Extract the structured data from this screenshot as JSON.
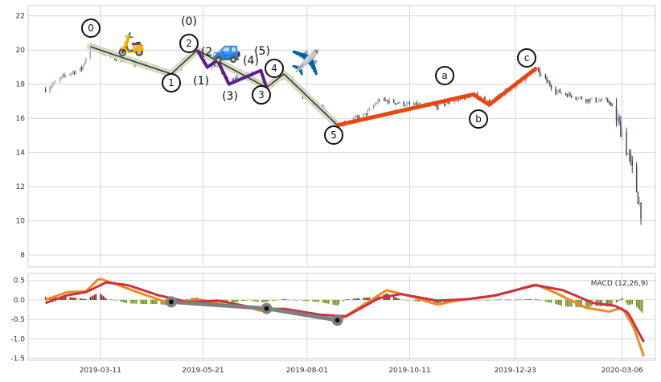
{
  "chart_data": [
    {
      "type": "candlestick",
      "panel": "price",
      "xlim": [
        "2019-01-20",
        "2020-03-29"
      ],
      "ylim": [
        7.3,
        22.6
      ],
      "yticks": [
        8,
        10,
        12,
        14,
        16,
        18,
        20,
        22
      ],
      "grid": true,
      "colors": {
        "up": "#9aa3b0",
        "down": "#3a4352",
        "impulse_outline": "#d2d9bf",
        "impulse_core": "#2a2a2a",
        "sub_wave": "#5b1f8a",
        "correction": "#e8470f"
      },
      "price_anchors": [
        {
          "x": "2019-02-01",
          "y": 17.7
        },
        {
          "x": "2019-02-16",
          "y": 18.6
        },
        {
          "x": "2019-02-26",
          "y": 18.9
        },
        {
          "x": "2019-03-04",
          "y": 20.2
        },
        {
          "x": "2019-03-22",
          "y": 19.5
        },
        {
          "x": "2019-04-10",
          "y": 19.1
        },
        {
          "x": "2019-04-29",
          "y": 18.6
        },
        {
          "x": "2019-05-10",
          "y": 19.6
        },
        {
          "x": "2019-05-17",
          "y": 20.0
        },
        {
          "x": "2019-05-24",
          "y": 19.0
        },
        {
          "x": "2019-05-31",
          "y": 19.1
        },
        {
          "x": "2019-06-08",
          "y": 18.1
        },
        {
          "x": "2019-06-21",
          "y": 18.6
        },
        {
          "x": "2019-06-30",
          "y": 17.9
        },
        {
          "x": "2019-07-04",
          "y": 17.8
        },
        {
          "x": "2019-07-16",
          "y": 18.5
        },
        {
          "x": "2019-07-30",
          "y": 17.3
        },
        {
          "x": "2019-08-13",
          "y": 16.4
        },
        {
          "x": "2019-08-22",
          "y": 15.6
        },
        {
          "x": "2019-09-10",
          "y": 16.2
        },
        {
          "x": "2019-09-20",
          "y": 17.1
        },
        {
          "x": "2019-10-10",
          "y": 16.8
        },
        {
          "x": "2019-10-30",
          "y": 16.7
        },
        {
          "x": "2019-11-24",
          "y": 17.4
        },
        {
          "x": "2019-12-05",
          "y": 16.9
        },
        {
          "x": "2019-12-20",
          "y": 17.8
        },
        {
          "x": "2020-01-06",
          "y": 18.9
        },
        {
          "x": "2020-01-20",
          "y": 17.6
        },
        {
          "x": "2020-02-10",
          "y": 17.1
        },
        {
          "x": "2020-02-26",
          "y": 17.0
        },
        {
          "x": "2020-03-06",
          "y": 15.2
        },
        {
          "x": "2020-03-14",
          "y": 12.6
        },
        {
          "x": "2020-03-19",
          "y": 10.6
        }
      ],
      "waves": [
        {
          "label": "0",
          "x": "2019-03-04",
          "y": 20.2
        },
        {
          "label": "1",
          "x": "2019-04-29",
          "y": 18.6
        },
        {
          "label": "2",
          "x": "2019-05-17",
          "y": 20.0
        },
        {
          "label": "3",
          "x": "2019-07-04",
          "y": 17.8
        },
        {
          "label": "4",
          "x": "2019-07-16",
          "y": 18.6
        },
        {
          "label": "5",
          "x": "2019-08-22",
          "y": 15.6
        }
      ],
      "sub_waves": [
        {
          "label": "(0)",
          "x": "2019-05-17",
          "y": 20.0
        },
        {
          "label": "(1)",
          "x": "2019-05-24",
          "y": 19.0
        },
        {
          "label": "(2",
          "x": "2019-05-31",
          "y": 19.4
        },
        {
          "label": "(3)",
          "x": "2019-06-08",
          "y": 18.0
        },
        {
          "label": "(4)",
          "x": "2019-06-30",
          "y": 18.8
        },
        {
          "label": "(5)",
          "x": "2019-07-04",
          "y": 17.8
        }
      ],
      "correction": [
        {
          "label": "a",
          "x": "2019-11-24",
          "y": 17.4
        },
        {
          "label": "b",
          "x": "2019-12-05",
          "y": 16.8
        },
        {
          "label": "c",
          "x": "2020-01-06",
          "y": 18.9
        }
      ],
      "correction_start": {
        "x": "2019-08-22",
        "y": 15.6
      },
      "icons": [
        {
          "name": "scooter-icon",
          "glyph": "🛵"
        },
        {
          "name": "car-icon",
          "glyph": "🚙"
        },
        {
          "name": "airplane-icon",
          "glyph": "✈️"
        }
      ],
      "wave_labels": {
        "w0": "0",
        "w1": "1",
        "w2": "2",
        "w3": "3",
        "w4": "4",
        "w5": "5",
        "s0": "(0)",
        "s1": "(1)",
        "s2": "(2",
        "s3": "(3)",
        "s4": "(4)",
        "s5": "(5)",
        "ca": "a",
        "cb": "b",
        "cc": "c"
      }
    },
    {
      "type": "macd",
      "panel": "indicator",
      "label": "MACD (12,26,9)",
      "ylim": [
        -1.55,
        0.68
      ],
      "yticks": [
        "0.5",
        "0.0",
        "-0.5",
        "-1.0",
        "-1.5"
      ],
      "ytick_values": [
        0.5,
        0.0,
        -0.5,
        -1.0,
        -1.5
      ],
      "grid": true,
      "colors": {
        "macd": "#f08a1e",
        "signal": "#c83243",
        "hist_pos": "#8b1d1d",
        "hist_neg": "#6b8e23",
        "divergence": "#7f7f7f"
      },
      "macd": [
        {
          "x": "2019-02-01",
          "y": 0.0
        },
        {
          "x": "2019-02-16",
          "y": 0.2
        },
        {
          "x": "2019-03-01",
          "y": 0.22
        },
        {
          "x": "2019-03-10",
          "y": 0.55
        },
        {
          "x": "2019-03-22",
          "y": 0.4
        },
        {
          "x": "2019-04-10",
          "y": 0.14
        },
        {
          "x": "2019-04-29",
          "y": -0.1
        },
        {
          "x": "2019-05-17",
          "y": 0.02
        },
        {
          "x": "2019-06-08",
          "y": -0.15
        },
        {
          "x": "2019-06-21",
          "y": -0.18
        },
        {
          "x": "2019-06-30",
          "y": -0.28
        },
        {
          "x": "2019-07-16",
          "y": -0.22
        },
        {
          "x": "2019-08-01",
          "y": -0.35
        },
        {
          "x": "2019-08-22",
          "y": -0.55
        },
        {
          "x": "2019-09-10",
          "y": -0.1
        },
        {
          "x": "2019-09-25",
          "y": 0.25
        },
        {
          "x": "2019-10-11",
          "y": 0.1
        },
        {
          "x": "2019-10-30",
          "y": -0.12
        },
        {
          "x": "2019-11-15",
          "y": 0.0
        },
        {
          "x": "2019-12-05",
          "y": 0.08
        },
        {
          "x": "2019-12-23",
          "y": 0.25
        },
        {
          "x": "2020-01-06",
          "y": 0.4
        },
        {
          "x": "2020-01-20",
          "y": 0.18
        },
        {
          "x": "2020-02-10",
          "y": -0.2
        },
        {
          "x": "2020-02-26",
          "y": -0.3
        },
        {
          "x": "2020-03-06",
          "y": -0.2
        },
        {
          "x": "2020-03-14",
          "y": -0.7
        },
        {
          "x": "2020-03-21",
          "y": -1.45
        }
      ],
      "signal": [
        {
          "x": "2019-02-01",
          "y": -0.08
        },
        {
          "x": "2019-02-16",
          "y": 0.12
        },
        {
          "x": "2019-03-01",
          "y": 0.2
        },
        {
          "x": "2019-03-15",
          "y": 0.45
        },
        {
          "x": "2019-03-30",
          "y": 0.38
        },
        {
          "x": "2019-04-20",
          "y": 0.12
        },
        {
          "x": "2019-05-10",
          "y": -0.05
        },
        {
          "x": "2019-06-01",
          "y": -0.02
        },
        {
          "x": "2019-06-25",
          "y": -0.2
        },
        {
          "x": "2019-07-20",
          "y": -0.25
        },
        {
          "x": "2019-08-10",
          "y": -0.38
        },
        {
          "x": "2019-08-28",
          "y": -0.42
        },
        {
          "x": "2019-09-20",
          "y": 0.05
        },
        {
          "x": "2019-10-05",
          "y": 0.15
        },
        {
          "x": "2019-10-30",
          "y": -0.02
        },
        {
          "x": "2019-11-20",
          "y": 0.02
        },
        {
          "x": "2019-12-10",
          "y": 0.12
        },
        {
          "x": "2020-01-06",
          "y": 0.38
        },
        {
          "x": "2020-01-25",
          "y": 0.25
        },
        {
          "x": "2020-02-15",
          "y": -0.08
        },
        {
          "x": "2020-03-01",
          "y": -0.15
        },
        {
          "x": "2020-03-10",
          "y": -0.32
        },
        {
          "x": "2020-03-21",
          "y": -1.08
        }
      ],
      "divergence": [
        {
          "x": "2019-04-29",
          "y": -0.05
        },
        {
          "x": "2019-07-04",
          "y": -0.22
        },
        {
          "x": "2019-08-22",
          "y": -0.52
        }
      ]
    }
  ],
  "x_axis": {
    "tick_labels": [
      "2019-03-11",
      "2019-05-21",
      "2019-08-01",
      "2019-10-11",
      "2019-12-23",
      "2020-03-06"
    ]
  }
}
